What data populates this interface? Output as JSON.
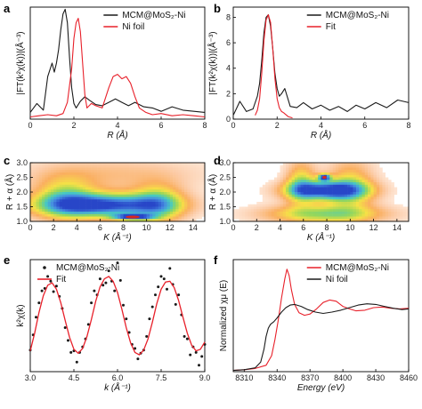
{
  "colors": {
    "black": "#1a1a1a",
    "red": "#e8202a"
  },
  "chart_data": [
    {
      "panel": "a",
      "type": "line",
      "xlabel": "R (Å)",
      "ylabel": "|FT(k²χ(k))|(Å⁻³)",
      "xlim": [
        0,
        8
      ],
      "ylim": [
        0,
        1
      ],
      "xticks": [
        "0",
        "2",
        "4",
        "6",
        "8"
      ],
      "yticks": [],
      "legend_position": "top-right",
      "series": [
        {
          "name": "MCM@MoS₂-Ni",
          "color": "#1a1a1a",
          "x": [
            0,
            0.3,
            0.6,
            0.8,
            1.0,
            1.1,
            1.2,
            1.3,
            1.4,
            1.5,
            1.6,
            1.7,
            1.8,
            1.9,
            2.0,
            2.1,
            2.3,
            2.5,
            2.7,
            3.0,
            3.3,
            3.6,
            3.9,
            4.2,
            4.5,
            4.8,
            5.2,
            5.6,
            6.0,
            6.5,
            7.0,
            7.5,
            8.0
          ],
          "y": [
            0.06,
            0.14,
            0.08,
            0.38,
            0.5,
            0.42,
            0.5,
            0.62,
            0.8,
            0.94,
            0.98,
            0.86,
            0.55,
            0.28,
            0.14,
            0.1,
            0.16,
            0.2,
            0.17,
            0.13,
            0.12,
            0.15,
            0.18,
            0.15,
            0.12,
            0.15,
            0.11,
            0.1,
            0.07,
            0.11,
            0.08,
            0.07,
            0.06
          ]
        },
        {
          "name": "Ni foil",
          "color": "#e8202a",
          "x": [
            0,
            0.4,
            0.8,
            1.2,
            1.5,
            1.7,
            1.9,
            2.0,
            2.1,
            2.2,
            2.3,
            2.4,
            2.5,
            2.6,
            2.8,
            3.0,
            3.3,
            3.6,
            3.8,
            4.0,
            4.2,
            4.4,
            4.6,
            4.8,
            5.0,
            5.3,
            5.6,
            6.0,
            6.5,
            7.0,
            7.5,
            8.0
          ],
          "y": [
            0.02,
            0.03,
            0.04,
            0.03,
            0.05,
            0.15,
            0.45,
            0.72,
            0.86,
            0.9,
            0.78,
            0.5,
            0.22,
            0.1,
            0.14,
            0.12,
            0.1,
            0.28,
            0.38,
            0.4,
            0.36,
            0.38,
            0.32,
            0.2,
            0.1,
            0.06,
            0.04,
            0.05,
            0.03,
            0.04,
            0.03,
            0.02
          ]
        }
      ]
    },
    {
      "panel": "b",
      "type": "line",
      "xlabel": "R (Å)",
      "ylabel": "|FT(k²χ(k))|(Å⁻³)",
      "xlim": [
        0,
        8
      ],
      "ylim": [
        0,
        8.8
      ],
      "xticks": [
        "0",
        "2",
        "4",
        "6",
        "8"
      ],
      "yticks": [
        "0",
        "2",
        "4",
        "6",
        "8"
      ],
      "legend_position": "top-right",
      "series": [
        {
          "name": "MCM@MoS₂-Ni",
          "color": "#1a1a1a",
          "x": [
            0,
            0.3,
            0.6,
            0.9,
            1.1,
            1.2,
            1.3,
            1.4,
            1.5,
            1.6,
            1.7,
            1.8,
            1.9,
            2.0,
            2.1,
            2.2,
            2.35,
            2.6,
            2.9,
            3.2,
            3.6,
            4.0,
            4.4,
            4.8,
            5.2,
            5.6,
            6.0,
            6.5,
            7.0,
            7.5,
            8.0
          ],
          "y": [
            0.3,
            1.4,
            0.6,
            0.8,
            1.8,
            2.8,
            4.6,
            6.8,
            8.0,
            8.2,
            7.3,
            5.6,
            3.6,
            2.4,
            1.8,
            2.0,
            2.4,
            1.0,
            0.9,
            1.3,
            0.8,
            1.1,
            0.7,
            1.0,
            0.6,
            1.1,
            0.8,
            1.3,
            0.9,
            1.5,
            1.3
          ]
        },
        {
          "name": "Fit",
          "color": "#e8202a",
          "x": [
            1.0,
            1.1,
            1.2,
            1.3,
            1.4,
            1.5,
            1.6,
            1.7,
            1.8,
            1.9,
            2.0,
            2.1,
            2.2,
            2.3,
            2.5,
            2.7
          ],
          "y": [
            0.3,
            0.7,
            1.6,
            3.6,
            6.2,
            7.8,
            8.2,
            7.6,
            5.6,
            3.2,
            1.6,
            0.9,
            0.6,
            0.5,
            0.2,
            0.1
          ]
        }
      ]
    },
    {
      "panel": "c",
      "type": "heatmap",
      "xlabel": "K (Å⁻¹)",
      "ylabel": "R + α (Å)",
      "xlim": [
        0,
        15
      ],
      "ylim": [
        1.0,
        3.0
      ],
      "xticks": [
        "0",
        "2",
        "4",
        "6",
        "8",
        "10",
        "12",
        "14"
      ],
      "yticks": [
        "1.0",
        "1.5",
        "2.0",
        "2.5",
        "3.0"
      ],
      "blobs": [
        {
          "cx": 6.3,
          "cy": 1.55,
          "sx": 3.8,
          "sy": 0.28,
          "amp": 1.0
        },
        {
          "cx": 8.8,
          "cy": 1.15,
          "sx": 1.2,
          "sy": 0.07,
          "amp": 0.85
        },
        {
          "cx": 3.0,
          "cy": 1.8,
          "sx": 1.8,
          "sy": 0.5,
          "amp": 0.45
        },
        {
          "cx": 11.0,
          "cy": 1.6,
          "sx": 1.5,
          "sy": 0.45,
          "amp": 0.5
        },
        {
          "cx": 7.0,
          "cy": 2.6,
          "sx": 5.5,
          "sy": 0.4,
          "amp": 0.18
        }
      ]
    },
    {
      "panel": "d",
      "type": "heatmap",
      "xlabel": "K (Å⁻¹)",
      "ylabel": "R + α (Å)",
      "xlim": [
        0,
        15
      ],
      "ylim": [
        1.0,
        3.0
      ],
      "xticks": [
        "0",
        "2",
        "4",
        "6",
        "8",
        "10",
        "12",
        "14"
      ],
      "yticks": [
        "1.0",
        "1.5",
        "2.0",
        "2.5",
        "3.0"
      ],
      "blobs": [
        {
          "cx": 8.0,
          "cy": 2.05,
          "sx": 2.3,
          "sy": 0.22,
          "amp": 1.0
        },
        {
          "cx": 7.8,
          "cy": 2.5,
          "sx": 0.35,
          "sy": 0.08,
          "amp": 0.95
        },
        {
          "cx": 7.8,
          "cy": 1.25,
          "sx": 3.5,
          "sy": 0.22,
          "amp": 0.55
        },
        {
          "cx": 5.8,
          "cy": 2.3,
          "sx": 0.9,
          "sy": 0.5,
          "amp": 0.45
        },
        {
          "cx": 10.0,
          "cy": 2.2,
          "sx": 1.4,
          "sy": 0.6,
          "amp": 0.4
        }
      ]
    },
    {
      "panel": "e",
      "type": "scatter",
      "xlabel": "k (Å⁻¹)",
      "ylabel": "k²χ(k)",
      "xlim": [
        3.0,
        9.0
      ],
      "ylim": [
        -7,
        7
      ],
      "xticks": [
        "3.0",
        "4.5",
        "6.0",
        "7.5",
        "9.0"
      ],
      "yticks": [],
      "legend_position": "top-left",
      "series": [
        {
          "name": "MCM@MoS₂-Ni",
          "color": "#1a1a1a",
          "x": [
            3.0,
            3.1,
            3.2,
            3.3,
            3.4,
            3.5,
            3.6,
            3.7,
            3.8,
            3.9,
            4.0,
            4.1,
            4.2,
            4.3,
            4.4,
            4.5,
            4.6,
            4.7,
            4.8,
            4.9,
            5.0,
            5.1,
            5.2,
            5.3,
            5.4,
            5.5,
            5.6,
            5.7,
            5.8,
            5.9,
            6.0,
            6.1,
            6.2,
            6.3,
            6.4,
            6.5,
            6.6,
            6.7,
            6.8,
            6.9,
            7.0,
            7.1,
            7.2,
            7.3,
            7.4,
            7.5,
            7.6,
            7.7,
            7.8,
            7.9,
            8.0,
            8.1,
            8.2,
            8.3,
            8.4,
            8.5,
            8.6,
            8.7,
            8.8,
            8.9,
            9.0
          ],
          "y": [
            -4.3,
            -2.4,
            -0.2,
            1.6,
            3.1,
            3.4,
            4.9,
            4.3,
            3.0,
            3.7,
            2.4,
            0.9,
            -1.5,
            -3.1,
            -4.6,
            -4.4,
            -5.8,
            -4.6,
            -3.9,
            -2.9,
            -1.1,
            1.6,
            3.1,
            2.6,
            4.6,
            3.8,
            4.1,
            5.6,
            4.3,
            3.1,
            6.6,
            4.4,
            1.3,
            -0.4,
            -2.1,
            -3.6,
            -4.1,
            -5.4,
            -4.7,
            -4.3,
            -2.6,
            -0.4,
            1.1,
            2.6,
            3.6,
            4.9,
            4.6,
            3.3,
            5.9,
            3.9,
            1.4,
            2.6,
            0.1,
            -2.6,
            -2.9,
            -4.9,
            -3.9,
            -4.6,
            -6.2,
            -5.1,
            -3.6
          ]
        },
        {
          "name": "Fit",
          "color": "#e8202a",
          "x": [
            3.0,
            3.15,
            3.3,
            3.45,
            3.6,
            3.75,
            3.9,
            4.05,
            4.2,
            4.35,
            4.5,
            4.65,
            4.8,
            4.95,
            5.1,
            5.25,
            5.4,
            5.55,
            5.7,
            5.85,
            6.0,
            6.15,
            6.3,
            6.45,
            6.6,
            6.75,
            6.9,
            7.05,
            7.2,
            7.35,
            7.5,
            7.65,
            7.8,
            7.95,
            8.1,
            8.25,
            8.4,
            8.55,
            8.7,
            8.85,
            9.0
          ],
          "y": [
            -4.4,
            -2.2,
            0.4,
            2.5,
            3.8,
            4.1,
            3.3,
            1.6,
            -0.6,
            -2.7,
            -4.2,
            -4.7,
            -4.1,
            -2.6,
            -0.5,
            1.8,
            3.6,
            4.6,
            4.9,
            4.3,
            2.9,
            0.8,
            -1.5,
            -3.4,
            -4.6,
            -4.9,
            -4.3,
            -2.9,
            -0.8,
            1.5,
            3.3,
            4.2,
            4.3,
            3.5,
            1.9,
            -0.2,
            -2.2,
            -3.7,
            -4.4,
            -4.2,
            -3.3
          ]
        }
      ]
    },
    {
      "panel": "f",
      "type": "line",
      "xlabel": "Energy (eV)",
      "ylabel": "Normalized χμ (E)",
      "xlim": [
        8300,
        8460
      ],
      "ylim": [
        0,
        1.75
      ],
      "xticks": [
        "8310",
        "8340",
        "8370",
        "8400",
        "8430",
        "8460"
      ],
      "yticks": [],
      "legend_position": "top-right",
      "series": [
        {
          "name": "MCM@MoS₂-Ni",
          "color": "#e8202a",
          "x": [
            8300,
            8310,
            8320,
            8330,
            8335,
            8338,
            8341,
            8344,
            8347,
            8349,
            8351,
            8353,
            8356,
            8360,
            8365,
            8370,
            8376,
            8382,
            8388,
            8394,
            8400,
            8406,
            8412,
            8420,
            8428,
            8436,
            8444,
            8452,
            8460
          ],
          "y": [
            0.02,
            0.03,
            0.05,
            0.1,
            0.25,
            0.5,
            0.8,
            1.15,
            1.45,
            1.6,
            1.5,
            1.28,
            1.05,
            0.92,
            0.88,
            0.9,
            0.98,
            1.08,
            1.12,
            1.1,
            1.02,
            0.98,
            0.95,
            0.96,
            1.0,
            1.01,
            0.99,
            0.98,
            0.99
          ]
        },
        {
          "name": "Ni foil",
          "color": "#1a1a1a",
          "x": [
            8300,
            8310,
            8320,
            8325,
            8328,
            8330,
            8332,
            8334,
            8337,
            8340,
            8344,
            8348,
            8352,
            8356,
            8362,
            8368,
            8375,
            8382,
            8390,
            8398,
            8406,
            8414,
            8422,
            8430,
            8438,
            8446,
            8454,
            8460
          ],
          "y": [
            0.02,
            0.03,
            0.06,
            0.15,
            0.35,
            0.55,
            0.68,
            0.74,
            0.78,
            0.84,
            0.93,
            1.0,
            1.04,
            1.05,
            1.02,
            0.97,
            0.93,
            0.91,
            0.93,
            0.96,
            1.0,
            1.04,
            1.06,
            1.05,
            1.02,
            0.99,
            0.97,
            0.98
          ]
        }
      ]
    }
  ]
}
